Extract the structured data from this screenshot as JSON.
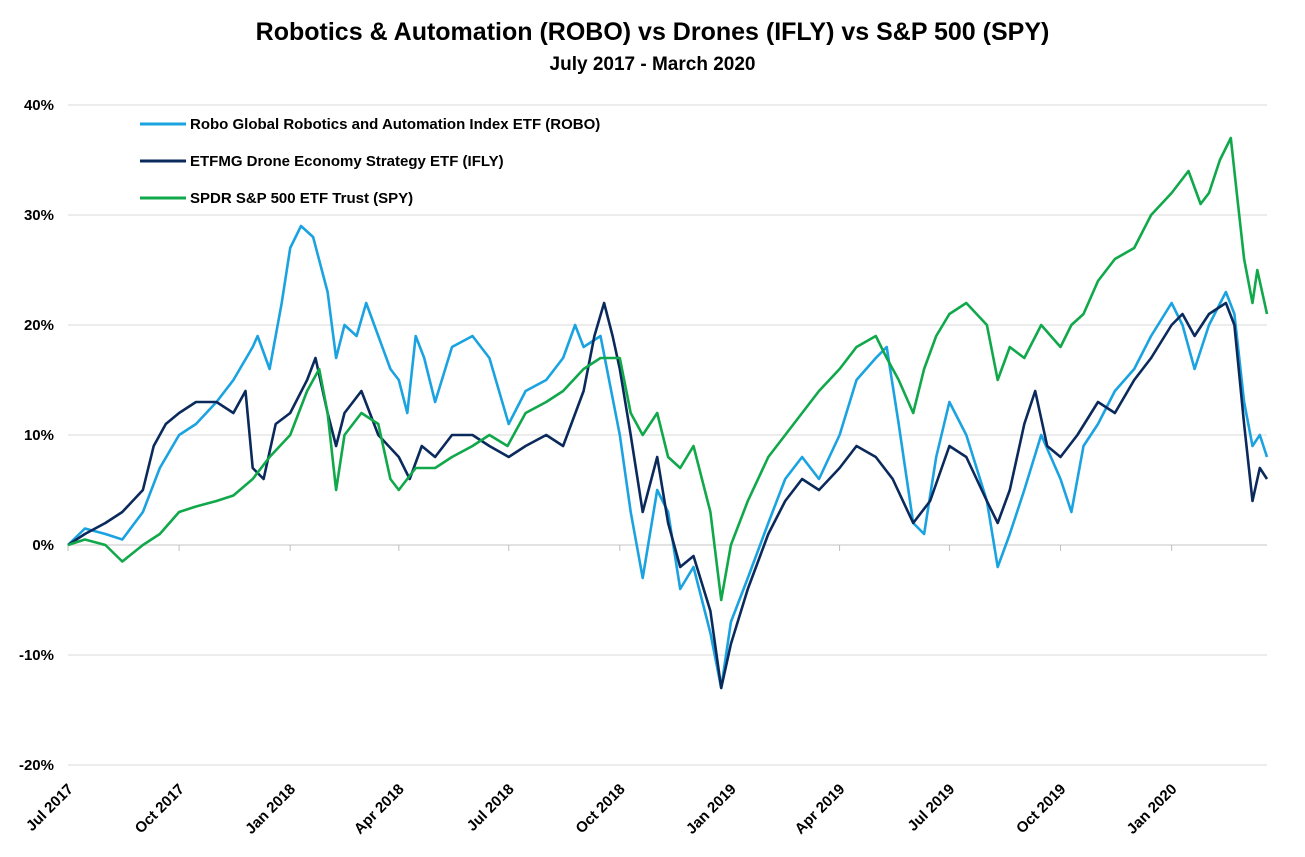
{
  "chart_data": {
    "type": "line",
    "title": "Robotics & Automation (ROBO) vs Drones (IFLY) vs S&P 500 (SPY)",
    "subtitle": "July 2017 - March 2020",
    "xlabel": "",
    "ylabel": "",
    "ylim": [
      -20,
      40
    ],
    "yticks": [
      -20,
      -10,
      0,
      10,
      20,
      30,
      40
    ],
    "ytick_labels": [
      "-20%",
      "-10%",
      "0%",
      "10%",
      "20%",
      "30%",
      "40%"
    ],
    "xlim": [
      "2017-07-01",
      "2020-03-20"
    ],
    "xticks": [
      {
        "date": "2017-07-01",
        "label": "Jul 2017"
      },
      {
        "date": "2017-10-01",
        "label": "Oct 2017"
      },
      {
        "date": "2018-01-01",
        "label": "Jan 2018"
      },
      {
        "date": "2018-04-01",
        "label": "Apr 2018"
      },
      {
        "date": "2018-07-01",
        "label": "Jul 2018"
      },
      {
        "date": "2018-10-01",
        "label": "Oct 2018"
      },
      {
        "date": "2019-01-01",
        "label": "Jan 2019"
      },
      {
        "date": "2019-04-01",
        "label": "Apr 2019"
      },
      {
        "date": "2019-07-01",
        "label": "Jul 2019"
      },
      {
        "date": "2019-10-01",
        "label": "Oct 2019"
      },
      {
        "date": "2020-01-01",
        "label": "Jan 2020"
      }
    ],
    "grid": "horizontal",
    "legend_position": "top-left",
    "series": [
      {
        "name": "Robo Global Robotics and Automation Index ETF (ROBO)",
        "color": "#1aa3e0",
        "points": [
          [
            "2017-07-01",
            0
          ],
          [
            "2017-07-15",
            1.5
          ],
          [
            "2017-08-01",
            1
          ],
          [
            "2017-08-15",
            0.5
          ],
          [
            "2017-09-01",
            3
          ],
          [
            "2017-09-15",
            7
          ],
          [
            "2017-10-01",
            10
          ],
          [
            "2017-10-15",
            11
          ],
          [
            "2017-11-01",
            13
          ],
          [
            "2017-11-15",
            15
          ],
          [
            "2017-12-01",
            18
          ],
          [
            "2017-12-05",
            19
          ],
          [
            "2017-12-15",
            16
          ],
          [
            "2017-12-25",
            22
          ],
          [
            "2018-01-01",
            27
          ],
          [
            "2018-01-10",
            29
          ],
          [
            "2018-01-20",
            28
          ],
          [
            "2018-02-01",
            23
          ],
          [
            "2018-02-08",
            17
          ],
          [
            "2018-02-15",
            20
          ],
          [
            "2018-02-25",
            19
          ],
          [
            "2018-03-05",
            22
          ],
          [
            "2018-03-15",
            19
          ],
          [
            "2018-03-25",
            16
          ],
          [
            "2018-04-01",
            15
          ],
          [
            "2018-04-08",
            12
          ],
          [
            "2018-04-15",
            19
          ],
          [
            "2018-04-22",
            17
          ],
          [
            "2018-05-01",
            13
          ],
          [
            "2018-05-15",
            18
          ],
          [
            "2018-06-01",
            19
          ],
          [
            "2018-06-15",
            17
          ],
          [
            "2018-07-01",
            11
          ],
          [
            "2018-07-15",
            14
          ],
          [
            "2018-08-01",
            15
          ],
          [
            "2018-08-15",
            17
          ],
          [
            "2018-08-25",
            20
          ],
          [
            "2018-09-01",
            18
          ],
          [
            "2018-09-15",
            19
          ],
          [
            "2018-10-01",
            10
          ],
          [
            "2018-10-10",
            3
          ],
          [
            "2018-10-20",
            -3
          ],
          [
            "2018-11-01",
            5
          ],
          [
            "2018-11-10",
            3
          ],
          [
            "2018-11-20",
            -4
          ],
          [
            "2018-12-01",
            -2
          ],
          [
            "2018-12-15",
            -8
          ],
          [
            "2018-12-24",
            -13
          ],
          [
            "2019-01-01",
            -7
          ],
          [
            "2019-01-15",
            -3
          ],
          [
            "2019-02-01",
            2
          ],
          [
            "2019-02-15",
            6
          ],
          [
            "2019-03-01",
            8
          ],
          [
            "2019-03-15",
            6
          ],
          [
            "2019-04-01",
            10
          ],
          [
            "2019-04-15",
            15
          ],
          [
            "2019-05-01",
            17
          ],
          [
            "2019-05-10",
            18
          ],
          [
            "2019-05-20",
            11
          ],
          [
            "2019-06-01",
            2
          ],
          [
            "2019-06-10",
            1
          ],
          [
            "2019-06-20",
            8
          ],
          [
            "2019-07-01",
            13
          ],
          [
            "2019-07-15",
            10
          ],
          [
            "2019-08-01",
            4
          ],
          [
            "2019-08-10",
            -2
          ],
          [
            "2019-08-20",
            1
          ],
          [
            "2019-09-01",
            5
          ],
          [
            "2019-09-15",
            10
          ],
          [
            "2019-10-01",
            6
          ],
          [
            "2019-10-10",
            3
          ],
          [
            "2019-10-20",
            9
          ],
          [
            "2019-11-01",
            11
          ],
          [
            "2019-11-15",
            14
          ],
          [
            "2019-12-01",
            16
          ],
          [
            "2019-12-15",
            19
          ],
          [
            "2020-01-01",
            22
          ],
          [
            "2020-01-10",
            20
          ],
          [
            "2020-01-20",
            16
          ],
          [
            "2020-02-01",
            20
          ],
          [
            "2020-02-15",
            23
          ],
          [
            "2020-02-22",
            21
          ],
          [
            "2020-03-01",
            13
          ],
          [
            "2020-03-08",
            9
          ],
          [
            "2020-03-14",
            10
          ],
          [
            "2020-03-20",
            8
          ]
        ]
      },
      {
        "name": "ETFMG Drone Economy Strategy ETF (IFLY)",
        "color": "#0b2a5c",
        "points": [
          [
            "2017-07-01",
            0
          ],
          [
            "2017-07-15",
            1
          ],
          [
            "2017-08-01",
            2
          ],
          [
            "2017-08-15",
            3
          ],
          [
            "2017-09-01",
            5
          ],
          [
            "2017-09-10",
            9
          ],
          [
            "2017-09-20",
            11
          ],
          [
            "2017-10-01",
            12
          ],
          [
            "2017-10-15",
            13
          ],
          [
            "2017-11-01",
            13
          ],
          [
            "2017-11-15",
            12
          ],
          [
            "2017-11-25",
            14
          ],
          [
            "2017-12-01",
            7
          ],
          [
            "2017-12-10",
            6
          ],
          [
            "2017-12-20",
            11
          ],
          [
            "2018-01-01",
            12
          ],
          [
            "2018-01-15",
            15
          ],
          [
            "2018-01-22",
            17
          ],
          [
            "2018-02-01",
            12
          ],
          [
            "2018-02-08",
            9
          ],
          [
            "2018-02-15",
            12
          ],
          [
            "2018-03-01",
            14
          ],
          [
            "2018-03-15",
            10
          ],
          [
            "2018-04-01",
            8
          ],
          [
            "2018-04-10",
            6
          ],
          [
            "2018-04-20",
            9
          ],
          [
            "2018-05-01",
            8
          ],
          [
            "2018-05-15",
            10
          ],
          [
            "2018-06-01",
            10
          ],
          [
            "2018-06-15",
            9
          ],
          [
            "2018-07-01",
            8
          ],
          [
            "2018-07-15",
            9
          ],
          [
            "2018-08-01",
            10
          ],
          [
            "2018-08-15",
            9
          ],
          [
            "2018-09-01",
            14
          ],
          [
            "2018-09-10",
            19
          ],
          [
            "2018-09-18",
            22
          ],
          [
            "2018-09-25",
            19
          ],
          [
            "2018-10-01",
            16
          ],
          [
            "2018-10-10",
            10
          ],
          [
            "2018-10-20",
            3
          ],
          [
            "2018-11-01",
            8
          ],
          [
            "2018-11-10",
            2
          ],
          [
            "2018-11-20",
            -2
          ],
          [
            "2018-12-01",
            -1
          ],
          [
            "2018-12-15",
            -6
          ],
          [
            "2018-12-24",
            -13
          ],
          [
            "2019-01-01",
            -9
          ],
          [
            "2019-01-15",
            -4
          ],
          [
            "2019-02-01",
            1
          ],
          [
            "2019-02-15",
            4
          ],
          [
            "2019-03-01",
            6
          ],
          [
            "2019-03-15",
            5
          ],
          [
            "2019-04-01",
            7
          ],
          [
            "2019-04-15",
            9
          ],
          [
            "2019-05-01",
            8
          ],
          [
            "2019-05-15",
            6
          ],
          [
            "2019-06-01",
            2
          ],
          [
            "2019-06-15",
            4
          ],
          [
            "2019-07-01",
            9
          ],
          [
            "2019-07-15",
            8
          ],
          [
            "2019-08-01",
            4
          ],
          [
            "2019-08-10",
            2
          ],
          [
            "2019-08-20",
            5
          ],
          [
            "2019-09-01",
            11
          ],
          [
            "2019-09-10",
            14
          ],
          [
            "2019-09-20",
            9
          ],
          [
            "2019-10-01",
            8
          ],
          [
            "2019-10-15",
            10
          ],
          [
            "2019-11-01",
            13
          ],
          [
            "2019-11-15",
            12
          ],
          [
            "2019-12-01",
            15
          ],
          [
            "2019-12-15",
            17
          ],
          [
            "2020-01-01",
            20
          ],
          [
            "2020-01-10",
            21
          ],
          [
            "2020-01-20",
            19
          ],
          [
            "2020-02-01",
            21
          ],
          [
            "2020-02-15",
            22
          ],
          [
            "2020-02-22",
            20
          ],
          [
            "2020-03-01",
            11
          ],
          [
            "2020-03-08",
            4
          ],
          [
            "2020-03-14",
            7
          ],
          [
            "2020-03-20",
            6
          ]
        ]
      },
      {
        "name": "SPDR S&P 500 ETF Trust (SPY)",
        "color": "#10a84a",
        "points": [
          [
            "2017-07-01",
            0
          ],
          [
            "2017-07-15",
            0.5
          ],
          [
            "2017-08-01",
            0
          ],
          [
            "2017-08-15",
            -1.5
          ],
          [
            "2017-09-01",
            0
          ],
          [
            "2017-09-15",
            1
          ],
          [
            "2017-10-01",
            3
          ],
          [
            "2017-10-15",
            3.5
          ],
          [
            "2017-11-01",
            4
          ],
          [
            "2017-11-15",
            4.5
          ],
          [
            "2017-12-01",
            6
          ],
          [
            "2017-12-15",
            8
          ],
          [
            "2018-01-01",
            10
          ],
          [
            "2018-01-15",
            14
          ],
          [
            "2018-01-25",
            16
          ],
          [
            "2018-02-01",
            12
          ],
          [
            "2018-02-08",
            5
          ],
          [
            "2018-02-15",
            10
          ],
          [
            "2018-03-01",
            12
          ],
          [
            "2018-03-15",
            11
          ],
          [
            "2018-03-25",
            6
          ],
          [
            "2018-04-01",
            5
          ],
          [
            "2018-04-15",
            7
          ],
          [
            "2018-05-01",
            7
          ],
          [
            "2018-05-15",
            8
          ],
          [
            "2018-06-01",
            9
          ],
          [
            "2018-06-15",
            10
          ],
          [
            "2018-06-30",
            9
          ],
          [
            "2018-07-15",
            12
          ],
          [
            "2018-08-01",
            13
          ],
          [
            "2018-08-15",
            14
          ],
          [
            "2018-09-01",
            16
          ],
          [
            "2018-09-15",
            17
          ],
          [
            "2018-10-01",
            17
          ],
          [
            "2018-10-10",
            12
          ],
          [
            "2018-10-20",
            10
          ],
          [
            "2018-11-01",
            12
          ],
          [
            "2018-11-10",
            8
          ],
          [
            "2018-11-20",
            7
          ],
          [
            "2018-12-01",
            9
          ],
          [
            "2018-12-15",
            3
          ],
          [
            "2018-12-24",
            -5
          ],
          [
            "2019-01-01",
            0
          ],
          [
            "2019-01-15",
            4
          ],
          [
            "2019-02-01",
            8
          ],
          [
            "2019-02-15",
            10
          ],
          [
            "2019-03-01",
            12
          ],
          [
            "2019-03-15",
            14
          ],
          [
            "2019-04-01",
            16
          ],
          [
            "2019-04-15",
            18
          ],
          [
            "2019-05-01",
            19
          ],
          [
            "2019-05-10",
            17
          ],
          [
            "2019-05-20",
            15
          ],
          [
            "2019-06-01",
            12
          ],
          [
            "2019-06-10",
            16
          ],
          [
            "2019-06-20",
            19
          ],
          [
            "2019-07-01",
            21
          ],
          [
            "2019-07-15",
            22
          ],
          [
            "2019-08-01",
            20
          ],
          [
            "2019-08-10",
            15
          ],
          [
            "2019-08-20",
            18
          ],
          [
            "2019-09-01",
            17
          ],
          [
            "2019-09-15",
            20
          ],
          [
            "2019-10-01",
            18
          ],
          [
            "2019-10-10",
            20
          ],
          [
            "2019-10-20",
            21
          ],
          [
            "2019-11-01",
            24
          ],
          [
            "2019-11-15",
            26
          ],
          [
            "2019-12-01",
            27
          ],
          [
            "2019-12-15",
            30
          ],
          [
            "2020-01-01",
            32
          ],
          [
            "2020-01-15",
            34
          ],
          [
            "2020-01-25",
            31
          ],
          [
            "2020-02-01",
            32
          ],
          [
            "2020-02-10",
            35
          ],
          [
            "2020-02-19",
            37
          ],
          [
            "2020-02-25",
            31
          ],
          [
            "2020-03-01",
            26
          ],
          [
            "2020-03-08",
            22
          ],
          [
            "2020-03-12",
            25
          ],
          [
            "2020-03-20",
            21
          ]
        ]
      }
    ]
  }
}
